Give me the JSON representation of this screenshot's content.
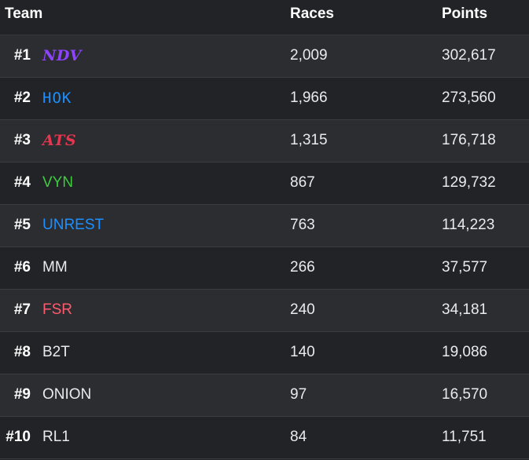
{
  "header": {
    "team": "Team",
    "races": "Races",
    "points": "Points"
  },
  "rows": [
    {
      "rank": "#1",
      "team": "NDV",
      "races": "2,009",
      "points": "302,617",
      "color": "#8e44ff",
      "style": "script"
    },
    {
      "rank": "#2",
      "team": "HOK",
      "races": "1,966",
      "points": "273,560",
      "color": "#1e8fff",
      "style": "mono"
    },
    {
      "rank": "#3",
      "team": "ATS",
      "races": "1,315",
      "points": "176,718",
      "color": "#e8344e",
      "style": "script"
    },
    {
      "rank": "#4",
      "team": "VYN",
      "races": "867",
      "points": "129,732",
      "color": "#3dcc3d",
      "style": "plain"
    },
    {
      "rank": "#5",
      "team": "UNREST",
      "races": "763",
      "points": "114,223",
      "color": "#1e8fff",
      "style": "plain"
    },
    {
      "rank": "#6",
      "team": "MM",
      "races": "266",
      "points": "37,577",
      "color": "#e9eaec",
      "style": "plain"
    },
    {
      "rank": "#7",
      "team": "FSR",
      "races": "240",
      "points": "34,181",
      "color": "#ff5a6e",
      "style": "plain"
    },
    {
      "rank": "#8",
      "team": "B2T",
      "races": "140",
      "points": "19,086",
      "color": "#e9eaec",
      "style": "plain"
    },
    {
      "rank": "#9",
      "team": "ONION",
      "races": "97",
      "points": "16,570",
      "color": "#e9eaec",
      "style": "plain"
    },
    {
      "rank": "#10",
      "team": "RL1",
      "races": "84",
      "points": "11,751",
      "color": "#e9eaec",
      "style": "plain"
    }
  ]
}
